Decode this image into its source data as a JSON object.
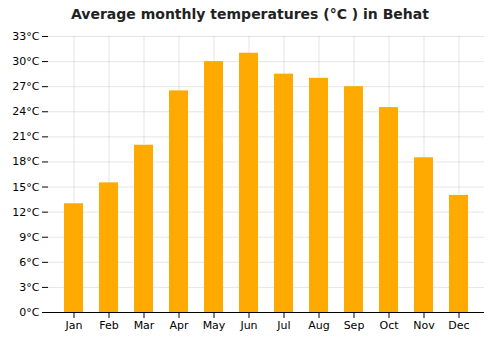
{
  "chart_data": {
    "type": "bar",
    "title": "Average monthly temperatures (°C ) in Behat",
    "categories": [
      "Jan",
      "Feb",
      "Mar",
      "Apr",
      "May",
      "Jun",
      "Jul",
      "Aug",
      "Sep",
      "Oct",
      "Nov",
      "Dec"
    ],
    "values": [
      13,
      15.5,
      20,
      26.5,
      30,
      31,
      28.5,
      28,
      27,
      24.5,
      18.5,
      14
    ],
    "color": "#FFAA00",
    "ylim": [
      0,
      33
    ],
    "yticks": [
      {
        "value": 0,
        "label": "0°C"
      },
      {
        "value": 3,
        "label": "3°C"
      },
      {
        "value": 6,
        "label": "6°C"
      },
      {
        "value": 9,
        "label": "9°C"
      },
      {
        "value": 12,
        "label": "12°C"
      },
      {
        "value": 15,
        "label": "15°C"
      },
      {
        "value": 18,
        "label": "18°C"
      },
      {
        "value": 21,
        "label": "21°C"
      },
      {
        "value": 24,
        "label": "24°C"
      },
      {
        "value": 27,
        "label": "27°C"
      },
      {
        "value": 30,
        "label": "30°C"
      },
      {
        "value": 33,
        "label": "33°C"
      }
    ],
    "grid": true
  }
}
